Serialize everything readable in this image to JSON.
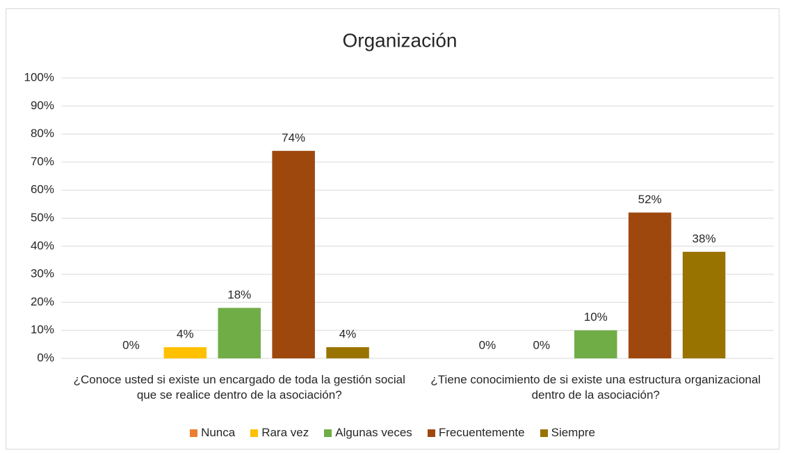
{
  "chart_data": {
    "type": "bar",
    "title": "Organización",
    "categories": [
      "¿Conoce usted si existe un encargado de toda la gestión social que se realice dentro de la asociación?",
      "¿Tiene conocimiento de si existe una estructura organizacional dentro de la asociación?"
    ],
    "series": [
      {
        "name": "Nunca",
        "color": "#ed7d31",
        "values": [
          0,
          0
        ],
        "value_labels": [
          "0%",
          "0%"
        ]
      },
      {
        "name": "Rara vez",
        "color": "#ffc000",
        "values": [
          4,
          0
        ],
        "value_labels": [
          "4%",
          "0%"
        ]
      },
      {
        "name": "Algunas veces",
        "color": "#70ad47",
        "values": [
          18,
          10
        ],
        "value_labels": [
          "18%",
          "10%"
        ]
      },
      {
        "name": "Frecuentemente",
        "color": "#9e480e",
        "values": [
          74,
          52
        ],
        "value_labels": [
          "74%",
          "52%"
        ]
      },
      {
        "name": "Siempre",
        "color": "#997300",
        "values": [
          4,
          38
        ],
        "value_labels": [
          "4%",
          "38%"
        ]
      }
    ],
    "ylim": [
      0,
      100
    ],
    "yticks": [
      {
        "value": 0,
        "label": "0%"
      },
      {
        "value": 10,
        "label": "10%"
      },
      {
        "value": 20,
        "label": "20%"
      },
      {
        "value": 30,
        "label": "30%"
      },
      {
        "value": 40,
        "label": "40%"
      },
      {
        "value": 50,
        "label": "50%"
      },
      {
        "value": 60,
        "label": "60%"
      },
      {
        "value": 70,
        "label": "70%"
      },
      {
        "value": 80,
        "label": "80%"
      },
      {
        "value": 90,
        "label": "90%"
      },
      {
        "value": 100,
        "label": "100%"
      }
    ],
    "grid": true,
    "legend": "bottom"
  }
}
